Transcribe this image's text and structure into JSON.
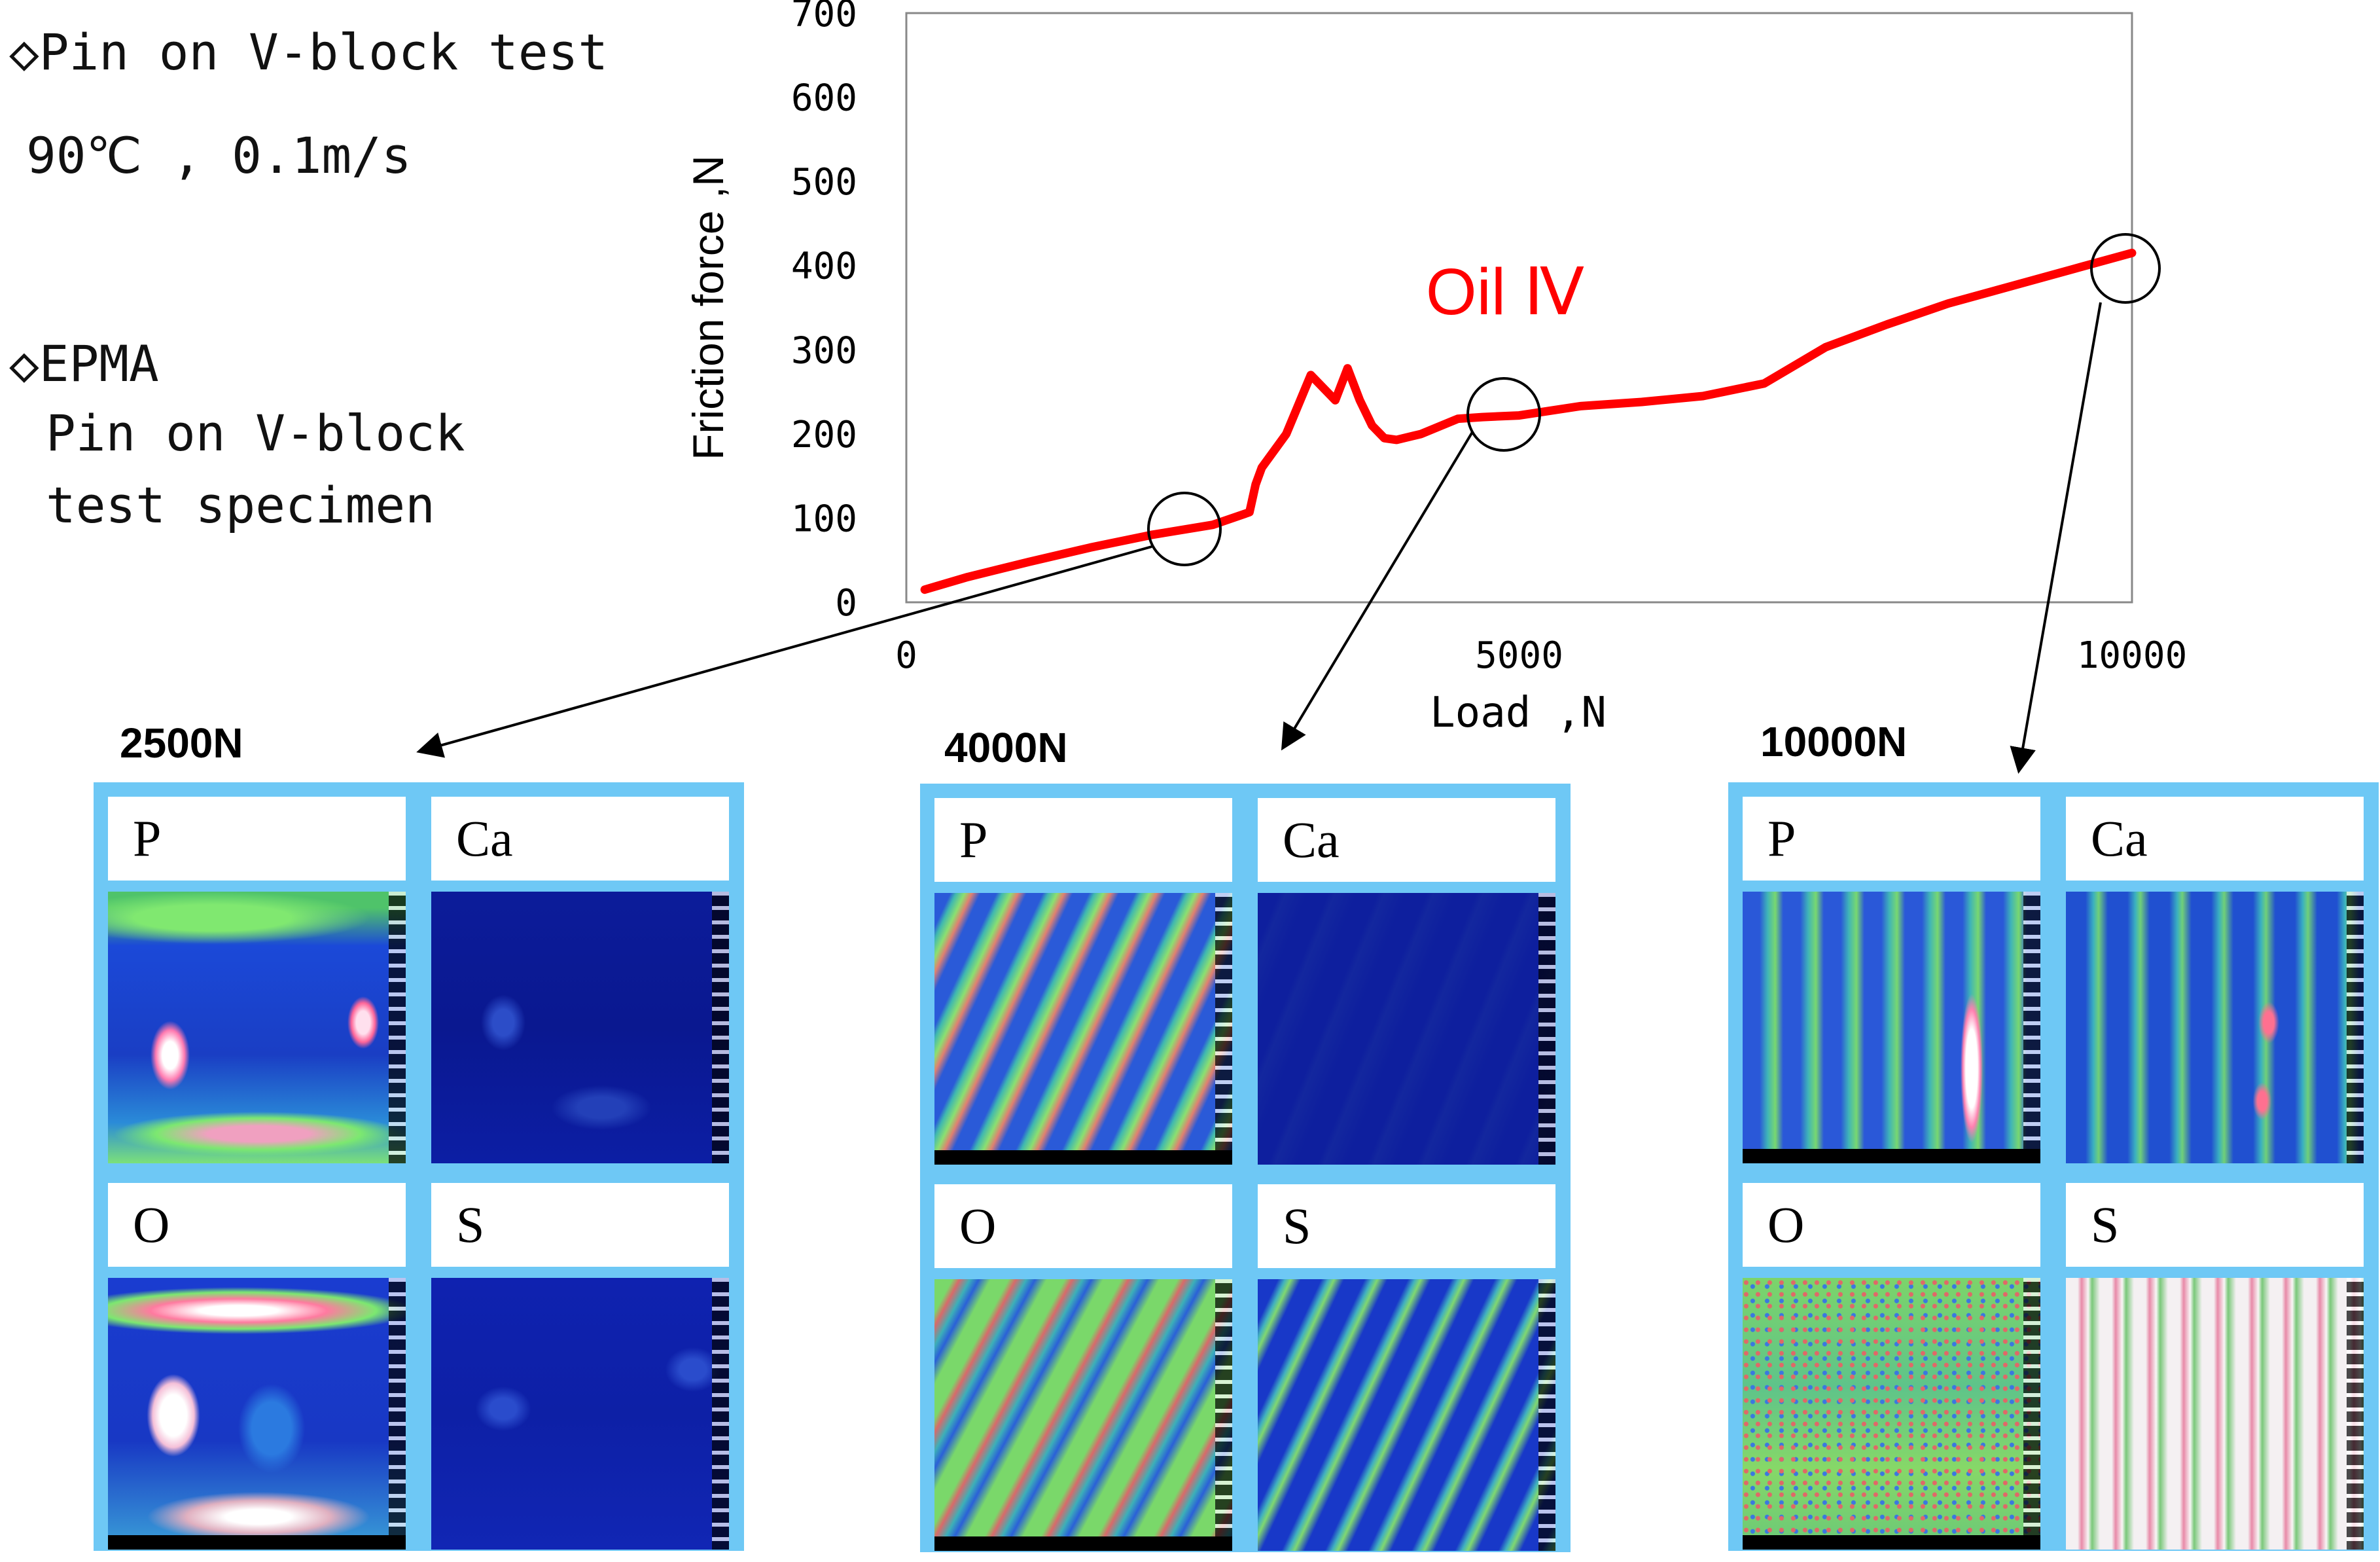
{
  "notes": {
    "test_title": "◇Pin on V-block test",
    "test_conditions": "90℃ , 0.1m/s",
    "epma_title": "◇EPMA",
    "epma_line1": "Pin on V-block",
    "epma_line2": "test specimen"
  },
  "chart_data": {
    "type": "line",
    "title": "",
    "xlabel": "Load ,N",
    "ylabel": "Friction force ,N",
    "xlim": [
      0,
      10000
    ],
    "ylim": [
      0,
      700
    ],
    "x_ticks": [
      0,
      5000,
      10000
    ],
    "y_ticks": [
      0,
      100,
      200,
      300,
      400,
      500,
      600,
      700
    ],
    "grid": false,
    "series": [
      {
        "name": "Oil Ⅳ",
        "color": "#ff0000",
        "x": [
          150,
          500,
          1000,
          1500,
          2000,
          2500,
          2800,
          2850,
          2900,
          3100,
          3300,
          3500,
          3600,
          3700,
          3800,
          3900,
          4000,
          4200,
          4500,
          4700,
          5000,
          5500,
          6000,
          6500,
          7000,
          7500,
          8000,
          8500,
          9000,
          9500,
          10000
        ],
        "y": [
          15,
          30,
          48,
          65,
          80,
          92,
          107,
          140,
          160,
          200,
          270,
          240,
          278,
          240,
          210,
          195,
          193,
          200,
          218,
          220,
          222,
          233,
          238,
          245,
          260,
          303,
          330,
          355,
          375,
          395,
          415
        ]
      }
    ],
    "annotations": [
      {
        "text": "Oil Ⅳ",
        "x": 4150,
        "y": 360
      },
      {
        "text": "circle",
        "x": 2300,
        "y": 90
      },
      {
        "text": "circle",
        "x": 4900,
        "y": 225
      },
      {
        "text": "circle",
        "x": 9950,
        "y": 400
      }
    ]
  },
  "samples": [
    {
      "label": "2500N",
      "cells": [
        {
          "element": "P",
          "map": "mostly blue with green bands and small white-red spots"
        },
        {
          "element": "Ca",
          "map": "dark navy, low intensity"
        },
        {
          "element": "O",
          "map": "blue with white, red and green patches"
        },
        {
          "element": "S",
          "map": "dark navy, low intensity"
        }
      ]
    },
    {
      "label": "4000N",
      "cells": [
        {
          "element": "P",
          "map": "diagonal blue-green-red streaks"
        },
        {
          "element": "Ca",
          "map": "dark navy, uniform"
        },
        {
          "element": "O",
          "map": "diagonal green-red streaks"
        },
        {
          "element": "S",
          "map": "blue with cyan-green streaks"
        }
      ]
    },
    {
      "label": "10000N",
      "cells": [
        {
          "element": "P",
          "map": "blue-green vertical bands with white streaks"
        },
        {
          "element": "Ca",
          "map": "blue-green with red spots"
        },
        {
          "element": "O",
          "map": "green-red speckle"
        },
        {
          "element": "S",
          "map": "white with red-green vertical streaks"
        }
      ]
    }
  ],
  "colors": {
    "curve": "#ff0000",
    "panel_border": "#6ec8f5",
    "axis": "#888888"
  }
}
